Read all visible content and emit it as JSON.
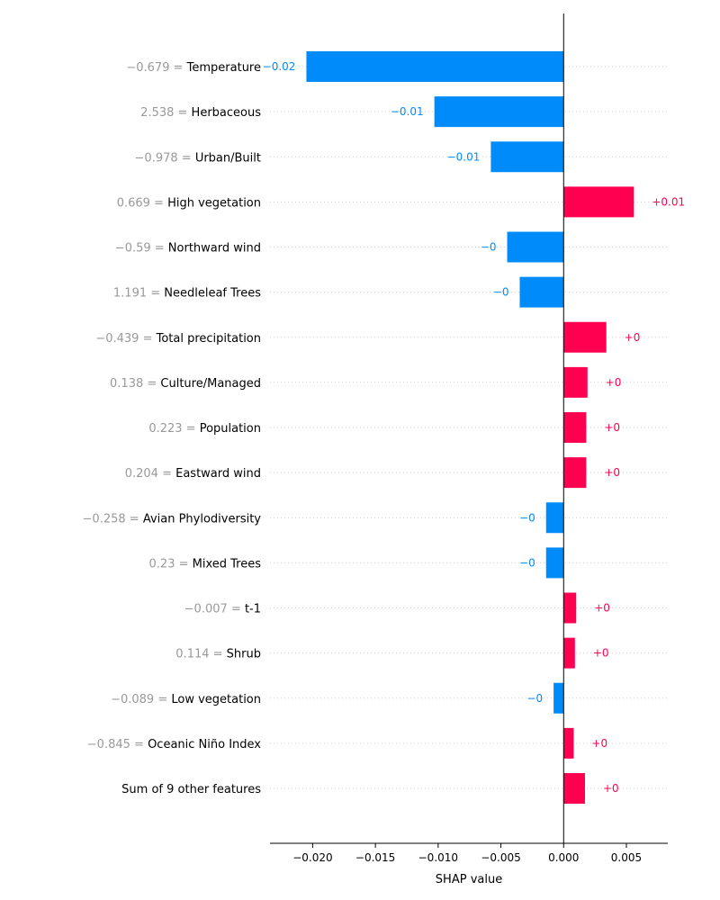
{
  "chart_data": {
    "type": "bar",
    "orientation": "horizontal",
    "xlabel": "SHAP value",
    "xlim": [
      -0.0234,
      0.0083
    ],
    "xticks": [
      -0.02,
      -0.015,
      -0.01,
      -0.005,
      0.0,
      0.005
    ],
    "xtick_labels": [
      "−0.020",
      "−0.015",
      "−0.010",
      "−0.005",
      "0.000",
      "0.005"
    ],
    "colors": {
      "positive": "#ff0051",
      "negative": "#008bfb",
      "feature_value": "#999999",
      "feature_name": "#000000",
      "gridline": "#cccccc"
    },
    "features": [
      {
        "value_label": "−0.679 =",
        "name": "Temperature",
        "shap": -0.0205,
        "shap_label": "−0.02"
      },
      {
        "value_label": "2.538 =",
        "name": "Herbaceous",
        "shap": -0.0103,
        "shap_label": "−0.01"
      },
      {
        "value_label": "−0.978 =",
        "name": "Urban/Built",
        "shap": -0.0058,
        "shap_label": "−0.01"
      },
      {
        "value_label": "0.669 =",
        "name": "High vegetation",
        "shap": 0.0056,
        "shap_label": "+0.01"
      },
      {
        "value_label": "−0.59 =",
        "name": "Northward wind",
        "shap": -0.0045,
        "shap_label": "−0"
      },
      {
        "value_label": "1.191 =",
        "name": "Needleleaf Trees",
        "shap": -0.0035,
        "shap_label": "−0"
      },
      {
        "value_label": "−0.439 =",
        "name": "Total precipitation",
        "shap": 0.0034,
        "shap_label": "+0"
      },
      {
        "value_label": "0.138 =",
        "name": "Culture/Managed",
        "shap": 0.0019,
        "shap_label": "+0"
      },
      {
        "value_label": "0.223 =",
        "name": "Population",
        "shap": 0.0018,
        "shap_label": "+0"
      },
      {
        "value_label": "0.204 =",
        "name": "Eastward wind",
        "shap": 0.0018,
        "shap_label": "+0"
      },
      {
        "value_label": "−0.258 =",
        "name": "Avian Phylodiversity",
        "shap": -0.0014,
        "shap_label": "−0"
      },
      {
        "value_label": "0.23 =",
        "name": "Mixed Trees",
        "shap": -0.0014,
        "shap_label": "−0"
      },
      {
        "value_label": "−0.007 =",
        "name": "t-1",
        "shap": 0.001,
        "shap_label": "+0"
      },
      {
        "value_label": "0.114 =",
        "name": "Shrub",
        "shap": 0.0009,
        "shap_label": "+0"
      },
      {
        "value_label": "−0.089 =",
        "name": "Low vegetation",
        "shap": -0.0008,
        "shap_label": "−0"
      },
      {
        "value_label": "−0.845 =",
        "name": "Oceanic Niño Index",
        "shap": 0.0008,
        "shap_label": "+0"
      },
      {
        "value_label": "",
        "name": "Sum of 9 other features",
        "shap": 0.0017,
        "shap_label": "+0"
      }
    ]
  }
}
